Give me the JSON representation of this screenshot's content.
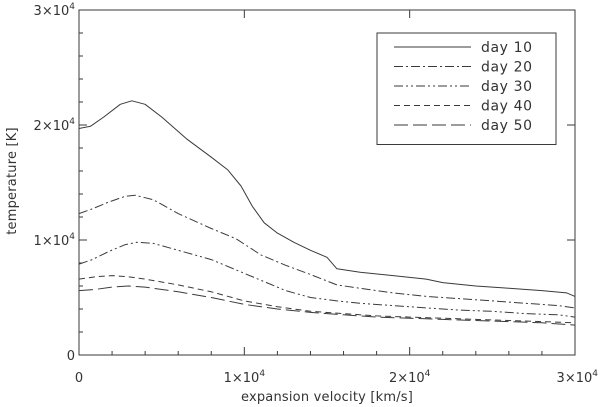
{
  "chart_data": {
    "type": "line",
    "title": "",
    "xlabel": "expansion velocity [km/s]",
    "ylabel": "temperature [K]",
    "xlim": [
      0,
      30000
    ],
    "ylim": [
      0,
      30000
    ],
    "x_ticks": [
      {
        "value": 0,
        "label": "0"
      },
      {
        "value": 10000,
        "label": "1×10",
        "exp": "4"
      },
      {
        "value": 20000,
        "label": "2×10",
        "exp": "4"
      },
      {
        "value": 30000,
        "label": "3×10",
        "exp": "4"
      }
    ],
    "y_ticks": [
      {
        "value": 0,
        "label": "0"
      },
      {
        "value": 10000,
        "label": "1×10",
        "exp": "4"
      },
      {
        "value": 20000,
        "label": "2×10",
        "exp": "4"
      },
      {
        "value": 30000,
        "label": "3×10",
        "exp": "4"
      }
    ],
    "grid": false,
    "legend_position": "top-right",
    "series": [
      {
        "name": "day 10",
        "dash": "solid",
        "points": [
          [
            0,
            19700
          ],
          [
            700,
            19900
          ],
          [
            1500,
            20700
          ],
          [
            2500,
            21800
          ],
          [
            3200,
            22100
          ],
          [
            4000,
            21800
          ],
          [
            5000,
            20700
          ],
          [
            6500,
            18800
          ],
          [
            8000,
            17200
          ],
          [
            9000,
            16100
          ],
          [
            9800,
            14700
          ],
          [
            10500,
            12900
          ],
          [
            11200,
            11500
          ],
          [
            12000,
            10600
          ],
          [
            13000,
            9800
          ],
          [
            14000,
            9100
          ],
          [
            15000,
            8500
          ],
          [
            15600,
            7500
          ],
          [
            17000,
            7200
          ],
          [
            19000,
            6900
          ],
          [
            21000,
            6600
          ],
          [
            22000,
            6300
          ],
          [
            24000,
            6000
          ],
          [
            26000,
            5800
          ],
          [
            28000,
            5600
          ],
          [
            29500,
            5400
          ],
          [
            30000,
            5100
          ]
        ]
      },
      {
        "name": "day 20",
        "dash": "dashdot",
        "points": [
          [
            0,
            12300
          ],
          [
            800,
            12700
          ],
          [
            1800,
            13300
          ],
          [
            2800,
            13800
          ],
          [
            3400,
            13900
          ],
          [
            4500,
            13500
          ],
          [
            6000,
            12300
          ],
          [
            8000,
            11000
          ],
          [
            9500,
            10100
          ],
          [
            11000,
            8700
          ],
          [
            12500,
            7800
          ],
          [
            14000,
            7000
          ],
          [
            15600,
            6100
          ],
          [
            17000,
            5800
          ],
          [
            19000,
            5400
          ],
          [
            21000,
            5100
          ],
          [
            23000,
            4900
          ],
          [
            25000,
            4700
          ],
          [
            27000,
            4500
          ],
          [
            29000,
            4300
          ],
          [
            30000,
            4100
          ]
        ]
      },
      {
        "name": "day 30",
        "dash": "dashdotdot",
        "points": [
          [
            0,
            7900
          ],
          [
            800,
            8300
          ],
          [
            1800,
            9000
          ],
          [
            2800,
            9600
          ],
          [
            3500,
            9800
          ],
          [
            4500,
            9700
          ],
          [
            6000,
            9100
          ],
          [
            8000,
            8300
          ],
          [
            9500,
            7400
          ],
          [
            11000,
            6500
          ],
          [
            12500,
            5600
          ],
          [
            14000,
            5000
          ],
          [
            15600,
            4700
          ],
          [
            17000,
            4500
          ],
          [
            19000,
            4300
          ],
          [
            21000,
            4100
          ],
          [
            23000,
            3900
          ],
          [
            25000,
            3800
          ],
          [
            27000,
            3600
          ],
          [
            29000,
            3500
          ],
          [
            30000,
            3300
          ]
        ]
      },
      {
        "name": "day 40",
        "dash": "dashed",
        "points": [
          [
            0,
            6600
          ],
          [
            1000,
            6800
          ],
          [
            2000,
            6900
          ],
          [
            3000,
            6800
          ],
          [
            4000,
            6600
          ],
          [
            6000,
            6100
          ],
          [
            8000,
            5500
          ],
          [
            10000,
            4700
          ],
          [
            12000,
            4200
          ],
          [
            14000,
            3800
          ],
          [
            16000,
            3600
          ],
          [
            18000,
            3400
          ],
          [
            20000,
            3300
          ],
          [
            22000,
            3200
          ],
          [
            24000,
            3100
          ],
          [
            26000,
            3000
          ],
          [
            28000,
            2900
          ],
          [
            30000,
            2800
          ]
        ]
      },
      {
        "name": "day 50",
        "dash": "longdash",
        "points": [
          [
            0,
            5600
          ],
          [
            1000,
            5700
          ],
          [
            2000,
            5900
          ],
          [
            3000,
            6000
          ],
          [
            4000,
            5900
          ],
          [
            6000,
            5500
          ],
          [
            8000,
            5000
          ],
          [
            10000,
            4400
          ],
          [
            12000,
            4000
          ],
          [
            14000,
            3700
          ],
          [
            16000,
            3500
          ],
          [
            18000,
            3300
          ],
          [
            20000,
            3200
          ],
          [
            22000,
            3100
          ],
          [
            24000,
            3000
          ],
          [
            26000,
            2900
          ],
          [
            28000,
            2800
          ],
          [
            30000,
            2600
          ]
        ]
      }
    ]
  }
}
